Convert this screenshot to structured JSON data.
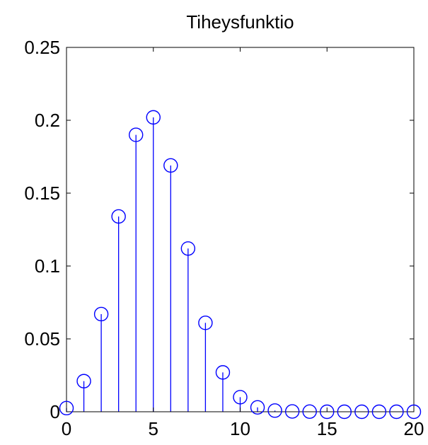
{
  "chart_data": {
    "type": "stem",
    "title": "Tiheysfunktio",
    "xlabel": "",
    "ylabel": "",
    "xlim": [
      0,
      20
    ],
    "ylim": [
      0,
      0.25
    ],
    "xticks": [
      0,
      5,
      10,
      15,
      20
    ],
    "xtick_labels": [
      "0",
      "5",
      "10",
      "15",
      "20"
    ],
    "yticks": [
      0,
      0.05,
      0.1,
      0.15,
      0.2,
      0.25
    ],
    "ytick_labels": [
      "0",
      "0.05",
      "0.1",
      "0.15",
      "0.2",
      "0.25"
    ],
    "grid": false,
    "marker": "circle",
    "series": [
      {
        "color": "#0000ff",
        "x": [
          0,
          1,
          2,
          3,
          4,
          5,
          6,
          7,
          8,
          9,
          10,
          11,
          12,
          13,
          14,
          15,
          16,
          17,
          18,
          19,
          20
        ],
        "y": [
          0.0025,
          0.021,
          0.067,
          0.134,
          0.19,
          0.202,
          0.169,
          0.112,
          0.061,
          0.027,
          0.01,
          0.003,
          0.0008,
          0.0002,
          0.0001,
          0.0,
          0.0,
          0.0,
          0.0,
          0.0,
          0.0
        ]
      }
    ]
  }
}
